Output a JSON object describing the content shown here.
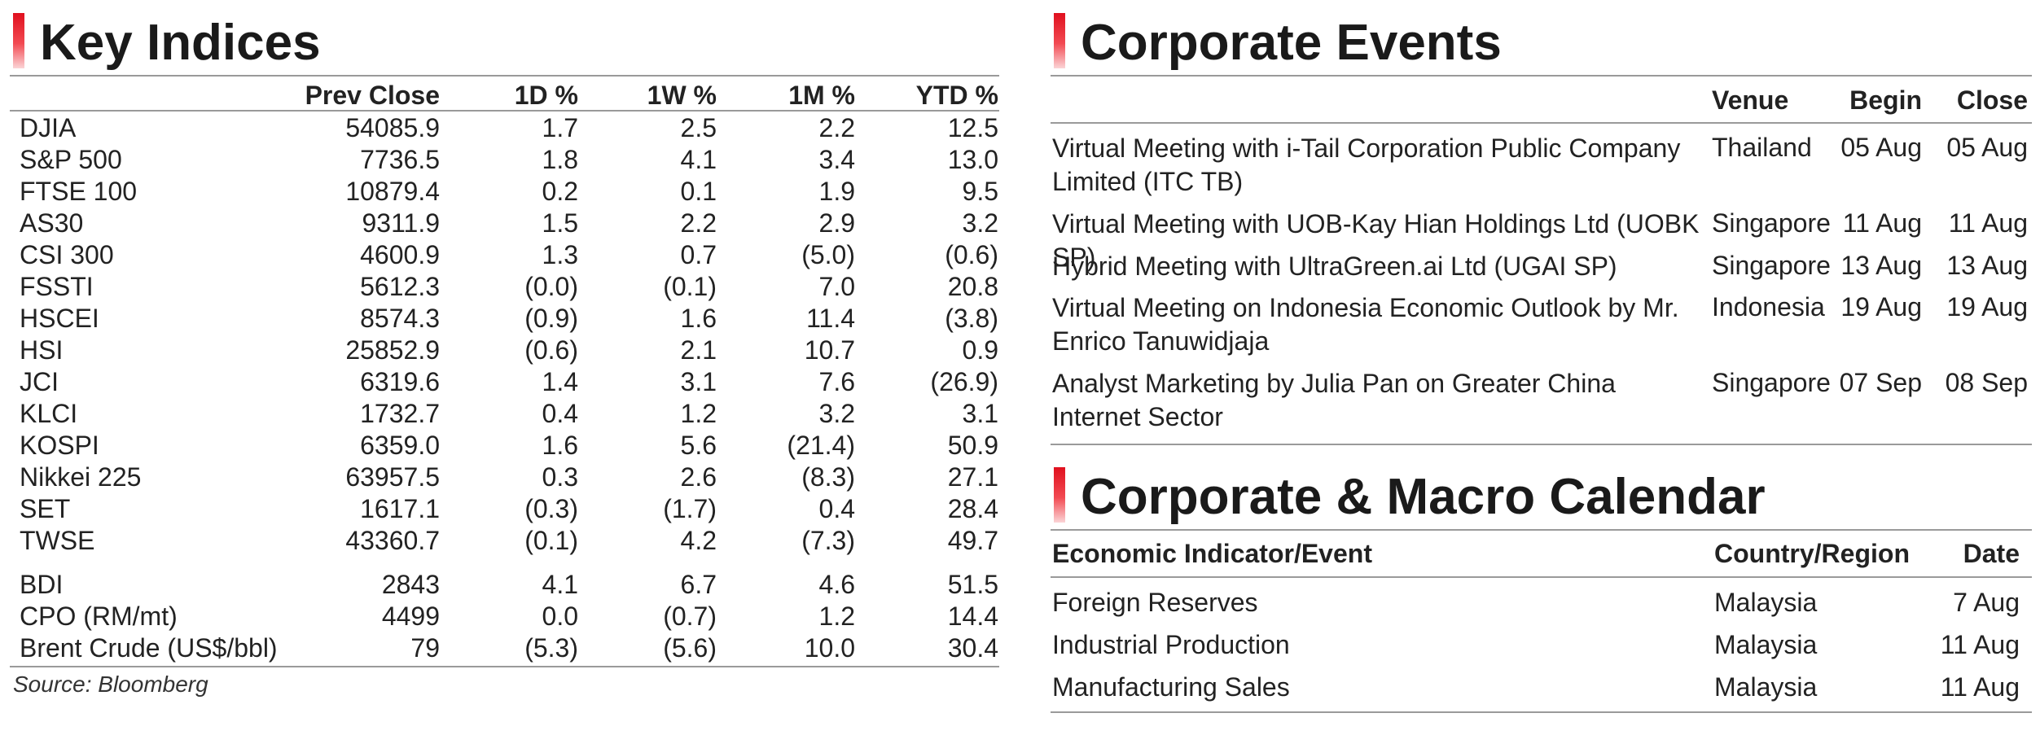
{
  "key_indices": {
    "title": "Key Indices",
    "columns": [
      "Prev Close",
      "1D %",
      "1W %",
      "1M %",
      "YTD %"
    ],
    "rows": [
      {
        "name": "DJIA",
        "prev_close": "54085.9",
        "d1": "1.7",
        "w1": "2.5",
        "m1": "2.2",
        "ytd": "12.5"
      },
      {
        "name": "S&P 500",
        "prev_close": "7736.5",
        "d1": "1.8",
        "w1": "4.1",
        "m1": "3.4",
        "ytd": "13.0"
      },
      {
        "name": "FTSE 100",
        "prev_close": "10879.4",
        "d1": "0.2",
        "w1": "0.1",
        "m1": "1.9",
        "ytd": "9.5"
      },
      {
        "name": "AS30",
        "prev_close": "9311.9",
        "d1": "1.5",
        "w1": "2.2",
        "m1": "2.9",
        "ytd": "3.2"
      },
      {
        "name": "CSI 300",
        "prev_close": "4600.9",
        "d1": "1.3",
        "w1": "0.7",
        "m1": "(5.0)",
        "ytd": "(0.6)"
      },
      {
        "name": "FSSTI",
        "prev_close": "5612.3",
        "d1": "(0.0)",
        "w1": "(0.1)",
        "m1": "7.0",
        "ytd": "20.8"
      },
      {
        "name": "HSCEI",
        "prev_close": "8574.3",
        "d1": "(0.9)",
        "w1": "1.6",
        "m1": "11.4",
        "ytd": "(3.8)"
      },
      {
        "name": "HSI",
        "prev_close": "25852.9",
        "d1": "(0.6)",
        "w1": "2.1",
        "m1": "10.7",
        "ytd": "0.9"
      },
      {
        "name": "JCI",
        "prev_close": "6319.6",
        "d1": "1.4",
        "w1": "3.1",
        "m1": "7.6",
        "ytd": "(26.9)"
      },
      {
        "name": "KLCI",
        "prev_close": "1732.7",
        "d1": "0.4",
        "w1": "1.2",
        "m1": "3.2",
        "ytd": "3.1"
      },
      {
        "name": "KOSPI",
        "prev_close": "6359.0",
        "d1": "1.6",
        "w1": "5.6",
        "m1": "(21.4)",
        "ytd": "50.9"
      },
      {
        "name": "Nikkei 225",
        "prev_close": "63957.5",
        "d1": "0.3",
        "w1": "2.6",
        "m1": "(8.3)",
        "ytd": "27.1"
      },
      {
        "name": "SET",
        "prev_close": "1617.1",
        "d1": "(0.3)",
        "w1": "(1.7)",
        "m1": "0.4",
        "ytd": "28.4"
      },
      {
        "name": "TWSE",
        "prev_close": "43360.7",
        "d1": "(0.1)",
        "w1": "4.2",
        "m1": "(7.3)",
        "ytd": "49.7"
      }
    ],
    "commodities": [
      {
        "name": "BDI",
        "prev_close": "2843",
        "d1": "4.1",
        "w1": "6.7",
        "m1": "4.6",
        "ytd": "51.5"
      },
      {
        "name": "CPO (RM/mt)",
        "prev_close": "4499",
        "d1": "0.0",
        "w1": "(0.7)",
        "m1": "1.2",
        "ytd": "14.4"
      },
      {
        "name": "Brent Crude (US$/bbl)",
        "prev_close": "79",
        "d1": "(5.3)",
        "w1": "(5.6)",
        "m1": "10.0",
        "ytd": "30.4"
      }
    ],
    "source": "Source: Bloomberg"
  },
  "corporate_events": {
    "title": "Corporate Events",
    "columns": [
      "Venue",
      "Begin",
      "Close"
    ],
    "rows": [
      {
        "event": "Virtual Meeting with i-Tail Corporation Public Company Limited (ITC TB)",
        "venue": "Thailand",
        "begin": "05 Aug",
        "close": "05 Aug"
      },
      {
        "event": "Virtual Meeting with UOB-Kay Hian Holdings Ltd (UOBK SP)",
        "venue": "Singapore",
        "begin": "11 Aug",
        "close": "11 Aug"
      },
      {
        "event": "Hybrid Meeting with UltraGreen.ai Ltd (UGAI SP)",
        "venue": "Singapore",
        "begin": "13 Aug",
        "close": "13 Aug"
      },
      {
        "event": "Virtual Meeting on Indonesia Economic Outlook by Mr. Enrico Tanuwidjaja",
        "venue": "Indonesia",
        "begin": "19 Aug",
        "close": "19 Aug"
      },
      {
        "event": "Analyst Marketing by Julia Pan on Greater China Internet Sector",
        "venue": "Singapore",
        "begin": "07 Sep",
        "close": "08 Sep"
      }
    ]
  },
  "macro_calendar": {
    "title": "Corporate & Macro Calendar",
    "columns": [
      "Economic Indicator/Event",
      "Country/Region",
      "Date"
    ],
    "rows": [
      {
        "event": "Foreign Reserves",
        "country": "Malaysia",
        "date": "7 Aug"
      },
      {
        "event": "Industrial Production",
        "country": "Malaysia",
        "date": "11 Aug"
      },
      {
        "event": "Manufacturing Sales",
        "country": "Malaysia",
        "date": "11 Aug"
      }
    ]
  }
}
